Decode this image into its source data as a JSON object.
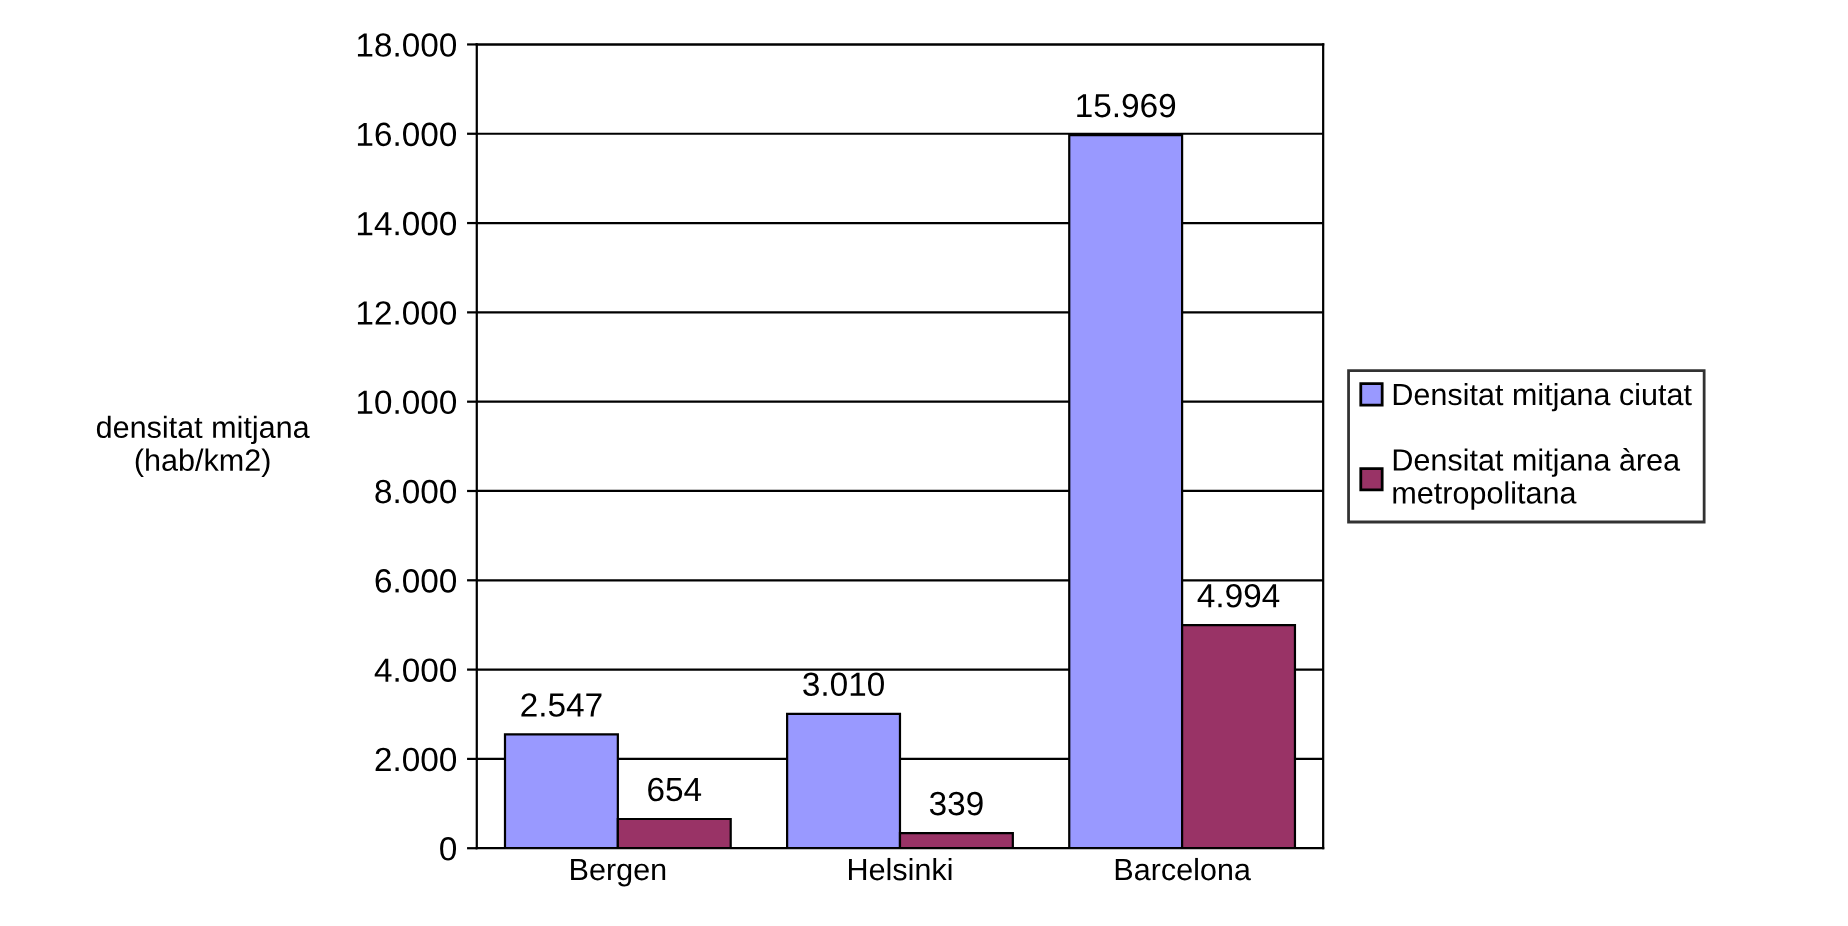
{
  "chart_data": {
    "type": "bar",
    "ylabel": "densitat mitjana\n(hab/km2)",
    "categories": [
      "Bergen",
      "Helsinki",
      "Barcelona"
    ],
    "series": [
      {
        "name": "Densitat mitjana ciutat",
        "color": "#9999ff",
        "values": [
          2547,
          3010,
          15969
        ],
        "value_labels": [
          "2.547",
          "3.010",
          "15.969"
        ]
      },
      {
        "name": "Densitat mitjana àrea\nmetropolitana",
        "color": "#993366",
        "values": [
          654,
          339,
          4994
        ],
        "value_labels": [
          "654",
          "339",
          "4.994"
        ]
      }
    ],
    "ylim": [
      0,
      18000
    ],
    "yticks": [
      {
        "value": 0,
        "label": "0"
      },
      {
        "value": 2000,
        "label": "2.000"
      },
      {
        "value": 4000,
        "label": "4.000"
      },
      {
        "value": 6000,
        "label": "6.000"
      },
      {
        "value": 8000,
        "label": "8.000"
      },
      {
        "value": 10000,
        "label": "10.000"
      },
      {
        "value": 12000,
        "label": "12.000"
      },
      {
        "value": 14000,
        "label": "14.000"
      },
      {
        "value": 16000,
        "label": "16.000"
      },
      {
        "value": 18000,
        "label": "18.000"
      }
    ],
    "grid": "y",
    "legend": "right"
  }
}
